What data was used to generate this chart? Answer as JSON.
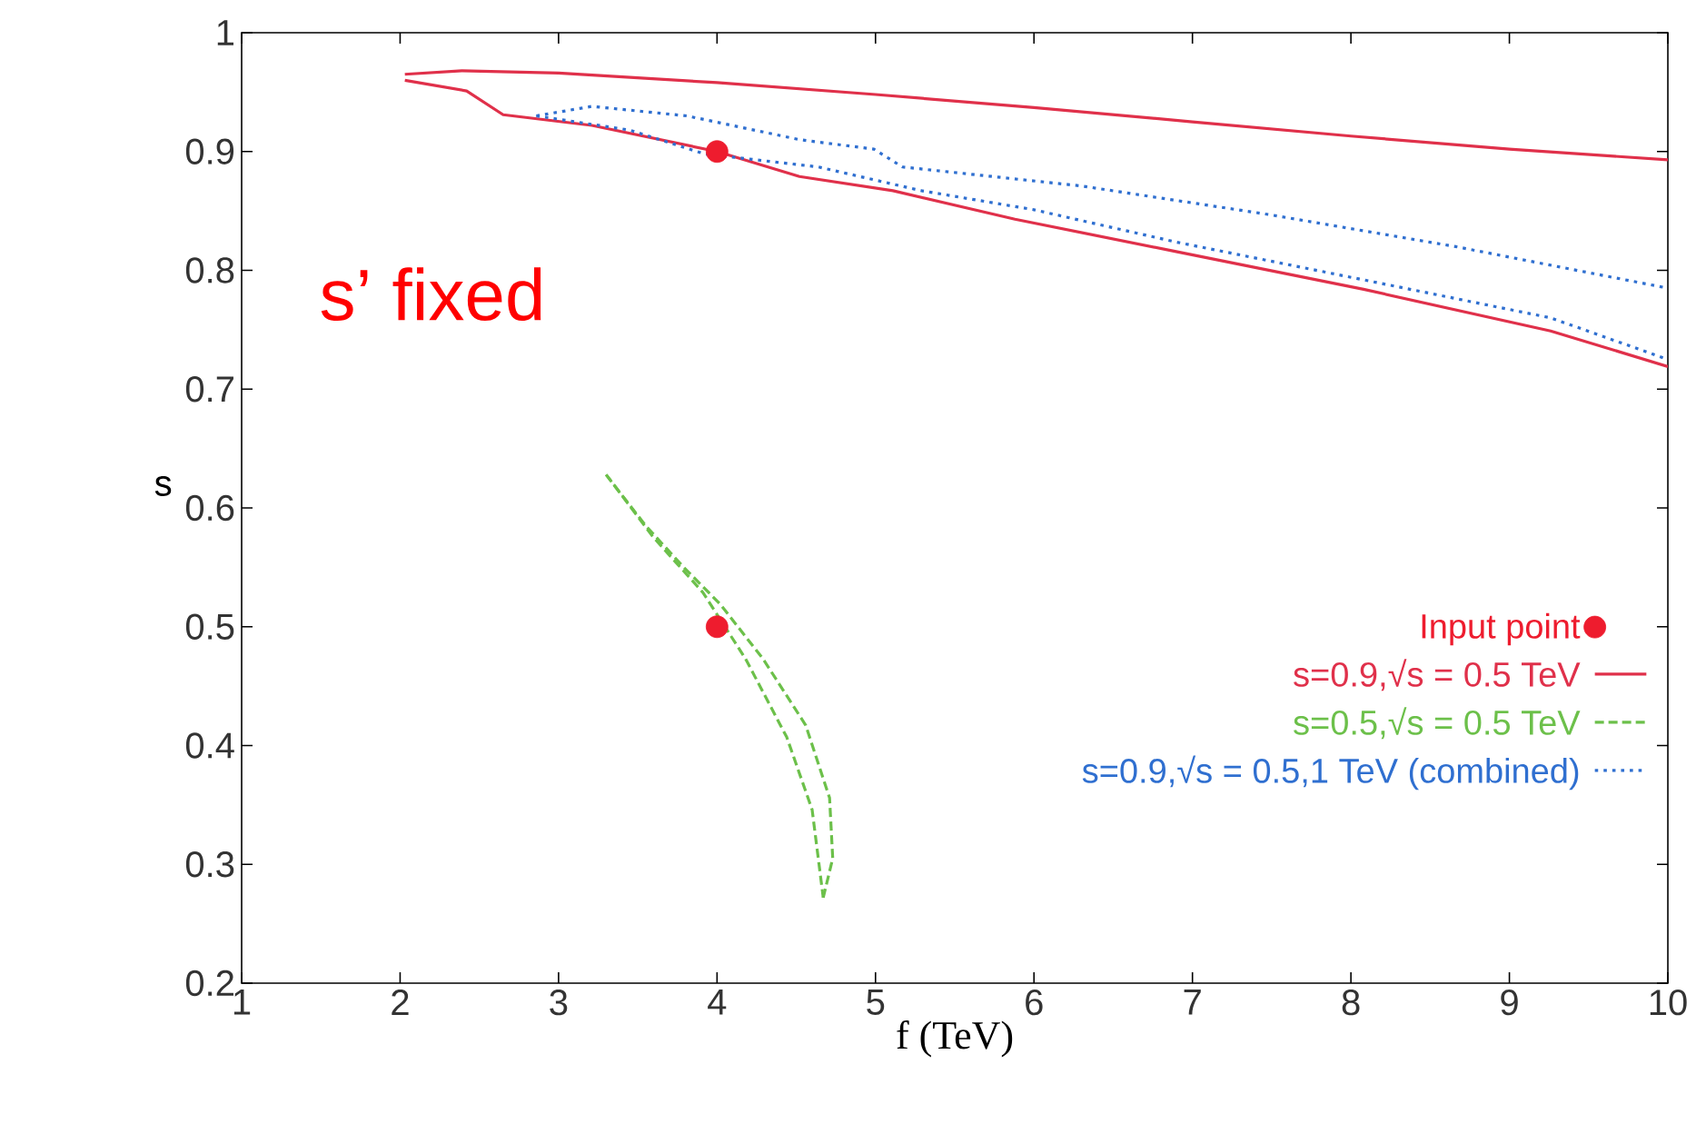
{
  "chart_data": {
    "type": "line",
    "xlabel": "f (TeV)",
    "ylabel": "s",
    "xlim": [
      1,
      10
    ],
    "ylim": [
      0.2,
      1
    ],
    "xticks": [
      1,
      2,
      3,
      4,
      5,
      6,
      7,
      8,
      9,
      10
    ],
    "yticks": [
      0.2,
      0.3,
      0.4,
      0.5,
      0.6,
      0.7,
      0.8,
      0.9,
      1
    ],
    "grid": false,
    "legend": "bottom right",
    "annotations": [
      "s’ fixed"
    ],
    "series": [
      {
        "name": "Input point",
        "type": "scatter",
        "color": "#ee1c2e",
        "x": [
          4,
          4
        ],
        "values": [
          0.9,
          0.5
        ]
      },
      {
        "name": "s=0.9,√s = 0.5 TeV",
        "line_style": "solid",
        "color": "#e0304a",
        "x": [
          2.03,
          2.39,
          3.0,
          4.0,
          5.0,
          6.0,
          7.0,
          8.0,
          9.0,
          10
        ],
        "values": [
          0.965,
          0.968,
          0.966,
          0.958,
          0.948,
          0.937,
          0.925,
          0.913,
          0.902,
          0.893
        ]
      },
      {
        "line_style": "solid",
        "color": "#e0304a",
        "x": [
          2.03,
          2.42,
          2.65,
          3.21,
          4.0,
          4.52,
          5.11,
          5.88,
          6.89,
          8.08,
          9.26,
          10
        ],
        "values": [
          0.96,
          0.951,
          0.931,
          0.922,
          0.9,
          0.879,
          0.867,
          0.843,
          0.816,
          0.784,
          0.749,
          0.719
        ]
      },
      {
        "name": "s=0.5,√s = 0.5 TeV",
        "line_style": "dashed",
        "color": "#6cc04a",
        "x": [
          3.3,
          3.6,
          3.91,
          4.18,
          4.44,
          4.6,
          4.67
        ],
        "values": [
          0.628,
          0.575,
          0.529,
          0.473,
          0.407,
          0.346,
          0.272
        ]
      },
      {
        "line_style": "dashed",
        "color": "#6cc04a",
        "x": [
          4.67,
          4.73,
          4.71,
          4.56,
          4.29,
          4.02,
          3.79,
          3.55,
          3.3
        ],
        "values": [
          0.272,
          0.305,
          0.356,
          0.417,
          0.473,
          0.519,
          0.55,
          0.585,
          0.628
        ]
      },
      {
        "name": "s=0.9,√s = 0.5,1 TeV (combined)",
        "line_style": "dotted",
        "color": "#2f6fd0",
        "x": [
          2.86,
          3.21,
          3.81,
          4.52,
          4.99,
          5.17,
          6.3,
          7.48,
          8.66,
          10
        ],
        "values": [
          0.93,
          0.938,
          0.93,
          0.91,
          0.902,
          0.887,
          0.871,
          0.847,
          0.82,
          0.785
        ]
      },
      {
        "line_style": "dotted",
        "color": "#2f6fd0",
        "x": [
          2.86,
          3.45,
          3.92,
          4.64,
          5.29,
          6.0,
          6.89,
          8.08,
          9.26,
          10
        ],
        "values": [
          0.93,
          0.918,
          0.898,
          0.887,
          0.867,
          0.851,
          0.824,
          0.792,
          0.76,
          0.725
        ]
      }
    ]
  }
}
